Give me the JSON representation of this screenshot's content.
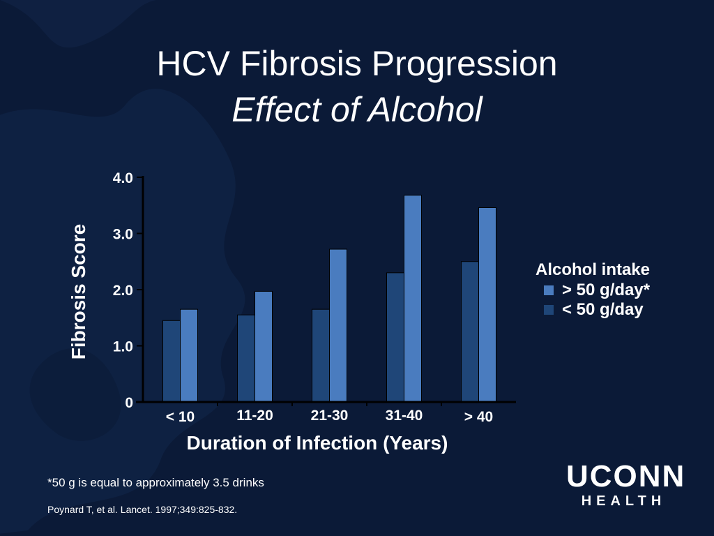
{
  "slide": {
    "title": "HCV Fibrosis Progression",
    "subtitle": "Effect of Alcohol",
    "footnote": "*50 g is equal to approximately 3.5 drinks",
    "citation": "Poynard T, et al. Lancet. 1997;349:825-832.",
    "logo_top": "UCONN",
    "logo_bottom": "HEALTH"
  },
  "colors": {
    "background": "#0b1a37",
    "high_alcohol": "#4a7cbf",
    "low_alcohol": "#1f4678",
    "axis": "#000000",
    "text": "#ffffff"
  },
  "chart_data": {
    "type": "bar",
    "xlabel": "Duration of Infection (Years)",
    "ylabel": "Fibrosis Score",
    "ylim": [
      0,
      4
    ],
    "yticks": [
      0,
      1,
      2,
      3,
      4
    ],
    "ytick_labels": [
      "0",
      "1.0",
      "2.0",
      "3.0",
      "4.0"
    ],
    "categories": [
      "< 10",
      "11-20",
      "21-30",
      "31-40",
      "> 40"
    ],
    "legend_title": "Alcohol intake",
    "legend_position": "right",
    "series": [
      {
        "name": "< 50 g/day",
        "values": [
          1.45,
          1.55,
          1.65,
          2.3,
          2.5
        ]
      },
      {
        "name": "> 50 g/day*",
        "values": [
          1.65,
          1.97,
          2.72,
          3.68,
          3.46
        ]
      }
    ]
  }
}
